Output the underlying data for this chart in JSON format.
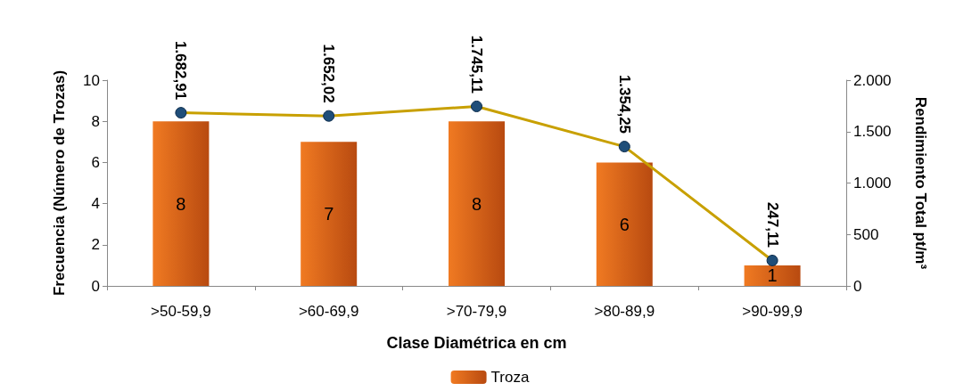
{
  "chart_data": {
    "type": "bar",
    "xlabel": "Clase Diamétrica en cm",
    "ylabel": "Frecuencia (Número de Trozas)",
    "y2label": "Rendimiento Total pt/m³",
    "categories": [
      ">50-59,9",
      ">60-69,9",
      ">70-79,9",
      ">80-89,9",
      ">90-99,9"
    ],
    "series": [
      {
        "name": "Troza",
        "color": "#f07a22",
        "values": [
          8,
          7,
          8,
          6,
          1
        ],
        "value_labels": [
          "8",
          "7",
          "8",
          "6",
          "1"
        ]
      },
      {
        "type": "line",
        "axis": "y2",
        "color": "#c8a000",
        "marker": "circle",
        "values": [
          1682.91,
          1652.02,
          1745.11,
          1354.25,
          247.11
        ],
        "value_labels": [
          "1.682,91",
          "1.652,02",
          "1.745,11",
          "1.354,25",
          "247,11"
        ]
      }
    ],
    "ylim": [
      0,
      10
    ],
    "yticks": [
      0,
      2,
      4,
      6,
      8,
      10
    ],
    "y2lim": [
      0,
      2000
    ],
    "y2ticks": [
      0,
      500,
      {
        "value": 1000,
        "label": "1.000"
      },
      {
        "value": 1500,
        "label": "1.500"
      },
      {
        "value": 2000,
        "label": "2.000"
      }
    ],
    "grid": false,
    "legend": "bottom"
  }
}
